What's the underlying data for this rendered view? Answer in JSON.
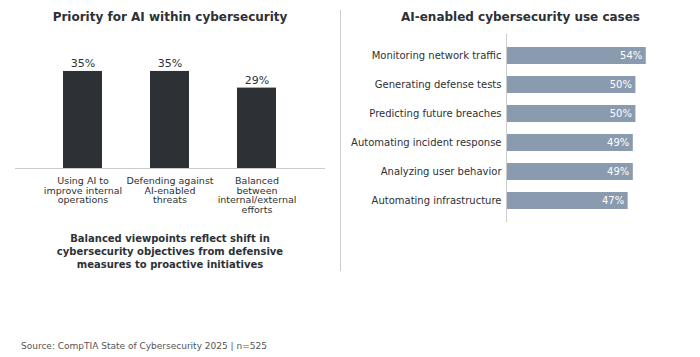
{
  "chart_data": [
    {
      "type": "bar",
      "title": "Priority for AI within cybersecurity",
      "categories": [
        "Using AI to\nimprove internal\noperations",
        "Defending against\nAI-enabled\nthreats",
        "Balanced\nbetween\ninternal/external\nefforts"
      ],
      "values": [
        35,
        35,
        29
      ],
      "value_labels": [
        "35%",
        "35%",
        "29%"
      ],
      "data_labels": true,
      "color": "#2d3136",
      "ylim": [
        0,
        44
      ],
      "tick_labels": "x",
      "grid": false,
      "annotation": "Balanced viewpoints reflect shift in\ncybersecurity objectives from defensive\nmeasures to proactive initiatives"
    },
    {
      "type": "bar",
      "orientation": "horizontal",
      "title": "AI-enabled cybersecurity use cases",
      "categories": [
        "Monitoring network traffic",
        "Generating defense tests",
        "Predicting future breaches",
        "Automating incident response",
        "Analyzing user behavior",
        "Automating infrastructure"
      ],
      "values": [
        54,
        50,
        50,
        49,
        49,
        47
      ],
      "value_labels": [
        "54%",
        "50%",
        "50%",
        "49%",
        "49%",
        "47%"
      ],
      "data_labels": true,
      "color": "#8a9bb0",
      "xlim": [
        0,
        68
      ],
      "tick_labels": "y",
      "grid": false
    }
  ],
  "source": "Source: CompTIA State of Cybersecurity 2025  |  n=525"
}
